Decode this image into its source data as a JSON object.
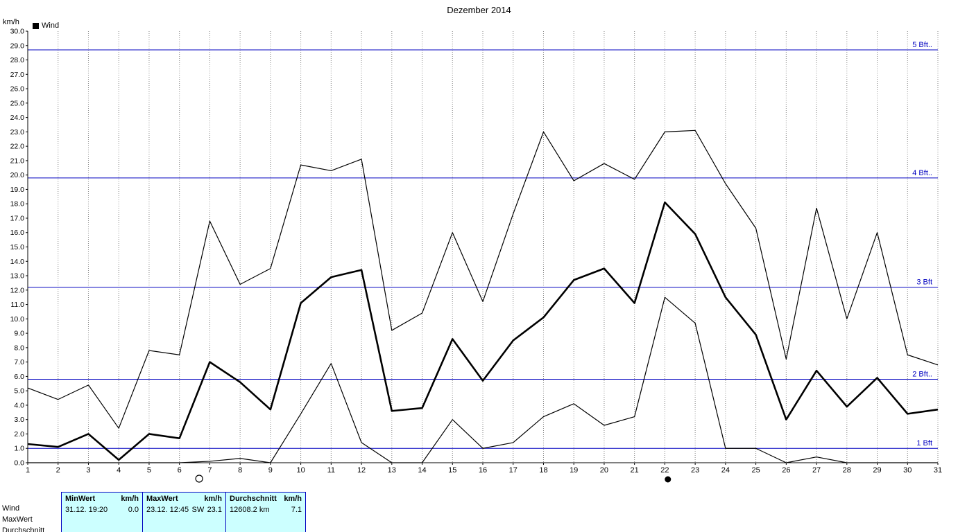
{
  "title": "Dezember 2014",
  "axis_unit": "km/h",
  "legend": {
    "label": "Wind",
    "swatch_color": "#000000"
  },
  "colors": {
    "line": "#000000",
    "bft_line": "#0000c0",
    "bft_label": "#0000c0",
    "grid": "#888888",
    "panel_bg": "#ccffff",
    "panel_border": "#0000c0"
  },
  "chart_data": {
    "type": "line",
    "title": "Dezember 2014",
    "xlabel": "",
    "ylabel": "km/h",
    "x": [
      1,
      2,
      3,
      4,
      5,
      6,
      7,
      8,
      9,
      10,
      11,
      12,
      13,
      14,
      15,
      16,
      17,
      18,
      19,
      20,
      21,
      22,
      23,
      24,
      25,
      26,
      27,
      28,
      29,
      30,
      31
    ],
    "ylim": [
      0,
      30
    ],
    "ytick_step": 1.0,
    "grid": "vertical-dotted",
    "legend_position": "top-left",
    "series": [
      {
        "key": "max",
        "name": "MaxWert",
        "thick": false,
        "values": [
          5.2,
          4.4,
          5.4,
          2.4,
          7.8,
          7.5,
          16.8,
          12.4,
          13.5,
          20.7,
          20.3,
          21.1,
          9.2,
          10.4,
          16.0,
          11.2,
          17.3,
          23.0,
          19.6,
          20.8,
          19.7,
          23.0,
          23.1,
          19.4,
          16.3,
          7.2,
          17.7,
          10.0,
          16.0,
          7.5,
          6.8
        ]
      },
      {
        "key": "mean",
        "name": "Durchschnitt",
        "thick": true,
        "values": [
          1.3,
          1.1,
          2.0,
          0.2,
          2.0,
          1.7,
          7.0,
          5.6,
          3.7,
          11.1,
          12.9,
          13.4,
          3.6,
          3.8,
          8.6,
          5.7,
          8.5,
          10.1,
          12.7,
          13.5,
          11.1,
          18.1,
          15.9,
          11.5,
          8.9,
          3.0,
          6.4,
          3.9,
          5.9,
          3.4,
          3.7
        ]
      },
      {
        "key": "min",
        "name": "MinWert",
        "thick": false,
        "values": [
          0.0,
          0.0,
          0.0,
          0.0,
          0.0,
          0.0,
          0.1,
          0.3,
          0.0,
          3.4,
          6.9,
          1.4,
          0.0,
          0.0,
          3.0,
          1.0,
          1.4,
          3.2,
          4.1,
          2.6,
          3.2,
          11.5,
          9.7,
          1.0,
          1.0,
          0.0,
          0.4,
          0.0,
          0.0,
          0.0,
          0.0
        ]
      }
    ],
    "reference_lines": [
      {
        "label": "1 Bft",
        "value": 1.0
      },
      {
        "label": "2 Bft..",
        "value": 5.8
      },
      {
        "label": "3 Bft",
        "value": 12.2
      },
      {
        "label": "4 Bft..",
        "value": 19.8
      },
      {
        "label": "5 Bft..",
        "value": 28.7
      }
    ],
    "moon_markers": [
      {
        "day": 6.65,
        "symbol": "open-circle"
      },
      {
        "day": 22.1,
        "symbol": "filled-circle"
      }
    ]
  },
  "summary_panel": {
    "row_labels": [
      "Wind",
      "MaxWert",
      "Durchschnitt"
    ],
    "col_min": {
      "header": "MinWert",
      "unit": "km/h"
    },
    "col_max": {
      "header": "MaxWert",
      "unit": "km/h"
    },
    "col_avg": {
      "header": "Durchschnitt",
      "unit": "km/h"
    },
    "wind": {
      "min_datetime": "31.12. 19:20",
      "min_value": "0.0",
      "max_datetime": "23.12. 12:45",
      "max_direction": "SW",
      "max_value": "23.1",
      "distance_total": "12608.2 km",
      "avg_value": "7.1"
    }
  }
}
